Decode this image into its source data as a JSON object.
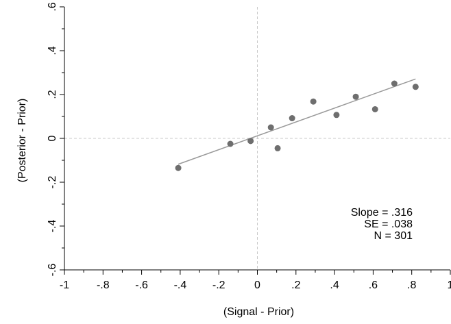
{
  "chart_data": {
    "type": "scatter",
    "xlabel": "(Signal - Prior)",
    "ylabel": "(Posterior - Prior)",
    "xlim": [
      -1,
      1
    ],
    "ylim": [
      -0.6,
      0.6
    ],
    "x_ticks": [
      -1,
      -0.8,
      -0.6,
      -0.4,
      -0.2,
      0,
      0.2,
      0.4,
      0.6,
      0.8,
      1
    ],
    "x_tick_labels": [
      "-1",
      "-.8",
      "-.6",
      "-.4",
      "-.2",
      "0",
      ".2",
      ".4",
      ".6",
      ".8",
      "1"
    ],
    "y_ticks": [
      -0.6,
      -0.4,
      -0.2,
      0,
      0.2,
      0.4,
      0.6
    ],
    "y_tick_labels": [
      "-.6",
      "-.4",
      "-.2",
      "0",
      ".2",
      ".4",
      ".6"
    ],
    "x_minor_ticks": [
      -0.9,
      -0.7,
      -0.5,
      -0.3,
      -0.1,
      0.1,
      0.3,
      0.5,
      0.7,
      0.9
    ],
    "y_minor_ticks": [
      -0.5,
      -0.3,
      -0.1,
      0.1,
      0.3,
      0.5
    ],
    "points": [
      {
        "x": -0.41,
        "y": -0.135
      },
      {
        "x": -0.14,
        "y": -0.025
      },
      {
        "x": -0.035,
        "y": -0.012
      },
      {
        "x": 0.07,
        "y": 0.05
      },
      {
        "x": 0.105,
        "y": -0.045
      },
      {
        "x": 0.18,
        "y": 0.092
      },
      {
        "x": 0.29,
        "y": 0.168
      },
      {
        "x": 0.41,
        "y": 0.107
      },
      {
        "x": 0.51,
        "y": 0.19
      },
      {
        "x": 0.61,
        "y": 0.133
      },
      {
        "x": 0.71,
        "y": 0.25
      },
      {
        "x": 0.82,
        "y": 0.235
      }
    ],
    "fit_line": {
      "x": [
        -0.41,
        0.82
      ],
      "y": [
        -0.118,
        0.271
      ]
    },
    "reference_lines": {
      "x": 0,
      "y": 0
    },
    "grid": false,
    "colors": {
      "points": "#6e6e6e",
      "fit_line": "#9a9a9a",
      "reference": "#c8c8c8",
      "axis": "#000000"
    },
    "annotation": [
      "Slope = .316",
      "SE = .038",
      "N = 301"
    ]
  }
}
